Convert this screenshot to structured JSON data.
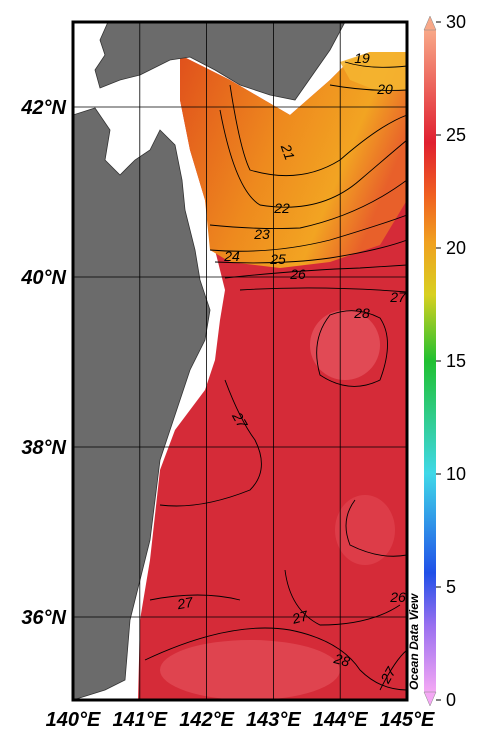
{
  "map": {
    "longitude_labels": [
      "140°E",
      "141°E",
      "142°E",
      "143°E",
      "144°E",
      "145°E"
    ],
    "latitude_labels": [
      "42°N",
      "40°N",
      "38°N",
      "36°N"
    ],
    "contour_labels": [
      19,
      20,
      21,
      22,
      23,
      24,
      25,
      26,
      27,
      28,
      27,
      27,
      27,
      26,
      28,
      27
    ],
    "colorbar": {
      "ticks": [
        0,
        5,
        10,
        15,
        20,
        25,
        30
      ]
    },
    "watermark": "Ocean Data View"
  }
}
